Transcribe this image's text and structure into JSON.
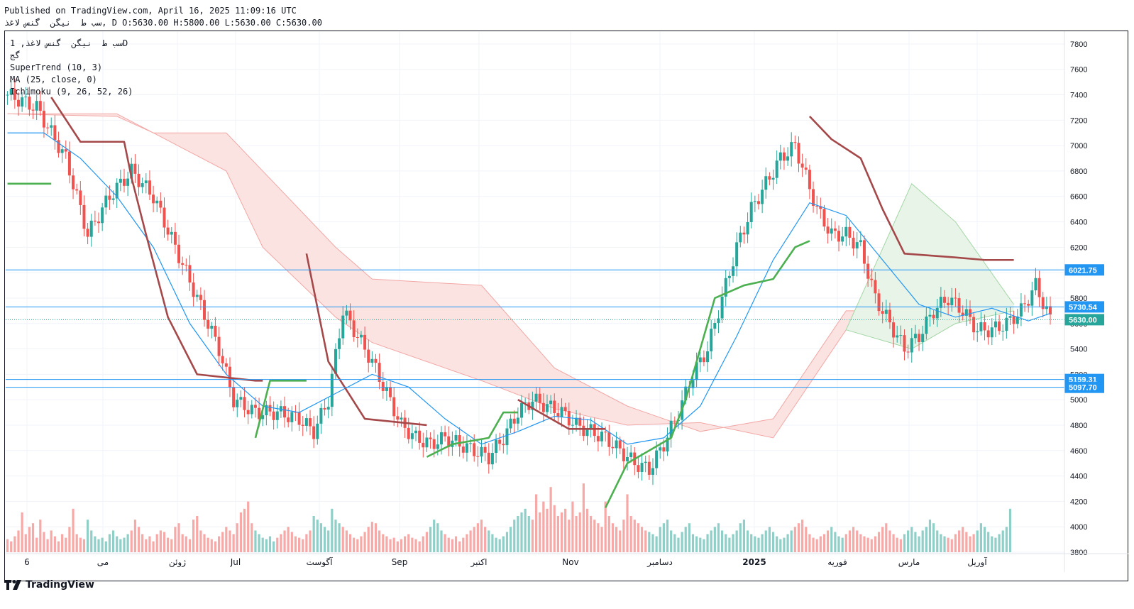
{
  "header": {
    "published": "Published on TradingView.com, April 16, 2025 11:09:16 UTC",
    "ohlc": "سب ط  نیگن  گنس لاغذ, D O:5630.00 H:5800.00 L:5630.00 C:5630.00"
  },
  "legend": {
    "symbol": "سب ط  نیگن  گنس لاغذ, 1D",
    "exchange": "گج",
    "indicators": [
      "SuperTrend (10, 3)",
      "MA (25, close, 0)",
      "Ichimoku (9, 26, 52, 26)"
    ]
  },
  "chart_data": {
    "type": "candlestick",
    "interval": "1D",
    "ylim": [
      3800,
      7900
    ],
    "y_ticks": [
      3800,
      4000,
      4200,
      4400,
      4600,
      4800,
      5000,
      5200,
      5400,
      5600,
      5800,
      6000,
      6200,
      6400,
      6600,
      6800,
      7000,
      7200,
      7400,
      7600,
      7800
    ],
    "x_labels": [
      "6",
      "می",
      "ژوئن",
      "Jul",
      "آگوست",
      "Sep",
      "اکتبر",
      "Nov",
      "دسامبر",
      "2025",
      "فوریه",
      "مارس",
      "آوریل"
    ],
    "price_lines": [
      {
        "value": 6021.75,
        "label": "6021.75",
        "color": "#2196f3"
      },
      {
        "value": 5730.54,
        "label": "5730.54",
        "color": "#2196f3"
      },
      {
        "value": 5630.0,
        "label": "5630.00",
        "color": "#26a69a"
      },
      {
        "value": 5159.31,
        "label": "5159.31",
        "color": "#2196f3"
      },
      {
        "value": 5097.7,
        "label": "5097.70",
        "color": "#2196f3"
      }
    ],
    "close_path": [
      [
        0,
        7400
      ],
      [
        8,
        7300
      ],
      [
        16,
        6900
      ],
      [
        22,
        6300
      ],
      [
        28,
        6600
      ],
      [
        34,
        6800
      ],
      [
        40,
        6600
      ],
      [
        46,
        6200
      ],
      [
        52,
        5800
      ],
      [
        58,
        5400
      ],
      [
        62,
        5000
      ],
      [
        68,
        4900
      ],
      [
        74,
        4900
      ],
      [
        80,
        4850
      ],
      [
        84,
        4750
      ],
      [
        88,
        5000
      ],
      [
        92,
        5700
      ],
      [
        96,
        5500
      ],
      [
        100,
        5300
      ],
      [
        104,
        5050
      ],
      [
        108,
        4800
      ],
      [
        112,
        4700
      ],
      [
        116,
        4650
      ],
      [
        120,
        4700
      ],
      [
        124,
        4650
      ],
      [
        128,
        4600
      ],
      [
        132,
        4550
      ],
      [
        136,
        4700
      ],
      [
        140,
        4900
      ],
      [
        144,
        5000
      ],
      [
        148,
        4950
      ],
      [
        152,
        4900
      ],
      [
        156,
        4800
      ],
      [
        160,
        4750
      ],
      [
        164,
        4700
      ],
      [
        168,
        4600
      ],
      [
        172,
        4500
      ],
      [
        176,
        4450
      ],
      [
        180,
        4650
      ],
      [
        184,
        4900
      ],
      [
        188,
        5200
      ],
      [
        192,
        5400
      ],
      [
        196,
        5800
      ],
      [
        200,
        6200
      ],
      [
        204,
        6500
      ],
      [
        208,
        6700
      ],
      [
        212,
        6900
      ],
      [
        216,
        7000
      ],
      [
        222,
        6500
      ],
      [
        226,
        6300
      ],
      [
        230,
        6300
      ],
      [
        234,
        6200
      ],
      [
        238,
        5800
      ],
      [
        242,
        5600
      ],
      [
        246,
        5400
      ],
      [
        250,
        5500
      ],
      [
        254,
        5700
      ],
      [
        258,
        5800
      ],
      [
        262,
        5700
      ],
      [
        266,
        5550
      ],
      [
        270,
        5550
      ],
      [
        274,
        5600
      ],
      [
        278,
        5700
      ],
      [
        282,
        5900
      ],
      [
        286,
        5630
      ]
    ],
    "ma25": [
      [
        0,
        7100
      ],
      [
        10,
        7100
      ],
      [
        20,
        6900
      ],
      [
        30,
        6600
      ],
      [
        40,
        6200
      ],
      [
        50,
        5600
      ],
      [
        60,
        5200
      ],
      [
        70,
        4950
      ],
      [
        80,
        4900
      ],
      [
        90,
        5050
      ],
      [
        100,
        5200
      ],
      [
        110,
        5100
      ],
      [
        120,
        4850
      ],
      [
        130,
        4650
      ],
      [
        140,
        4750
      ],
      [
        150,
        4870
      ],
      [
        160,
        4840
      ],
      [
        170,
        4650
      ],
      [
        180,
        4700
      ],
      [
        190,
        4950
      ],
      [
        200,
        5500
      ],
      [
        210,
        6100
      ],
      [
        220,
        6550
      ],
      [
        230,
        6450
      ],
      [
        240,
        6100
      ],
      [
        250,
        5750
      ],
      [
        260,
        5650
      ],
      [
        270,
        5720
      ],
      [
        280,
        5620
      ],
      [
        286,
        5680
      ]
    ],
    "supertrend": [
      {
        "color": "#4caf50",
        "points": [
          [
            0,
            6700
          ],
          [
            12,
            6700
          ]
        ]
      },
      {
        "color": "#a5484a",
        "points": [
          [
            12,
            7380
          ],
          [
            20,
            7030
          ],
          [
            32,
            7030
          ],
          [
            34,
            6750
          ],
          [
            38,
            6300
          ],
          [
            44,
            5650
          ],
          [
            52,
            5200
          ],
          [
            68,
            5150
          ],
          [
            70,
            5150
          ]
        ]
      },
      {
        "color": "#4caf50",
        "points": [
          [
            68,
            4700
          ],
          [
            72,
            5150
          ],
          [
            82,
            5150
          ]
        ]
      },
      {
        "color": "#a5484a",
        "points": [
          [
            82,
            6150
          ],
          [
            88,
            5300
          ],
          [
            98,
            4850
          ],
          [
            115,
            4800
          ]
        ]
      },
      {
        "color": "#4caf50",
        "points": [
          [
            115,
            4550
          ],
          [
            122,
            4650
          ],
          [
            132,
            4700
          ],
          [
            136,
            4900
          ],
          [
            140,
            4900
          ]
        ]
      },
      {
        "color": "#a5484a",
        "points": [
          [
            140,
            5000
          ],
          [
            146,
            4900
          ],
          [
            154,
            4770
          ],
          [
            164,
            4770
          ]
        ]
      },
      {
        "color": "#4caf50",
        "points": [
          [
            164,
            4150
          ],
          [
            170,
            4500
          ],
          [
            176,
            4600
          ],
          [
            182,
            4700
          ],
          [
            186,
            5000
          ],
          [
            194,
            5800
          ],
          [
            202,
            5900
          ],
          [
            210,
            5950
          ],
          [
            216,
            6200
          ],
          [
            220,
            6250
          ]
        ]
      },
      {
        "color": "#a5484a",
        "points": [
          [
            220,
            7230
          ],
          [
            226,
            7050
          ],
          [
            234,
            6900
          ],
          [
            240,
            6500
          ],
          [
            246,
            6150
          ],
          [
            260,
            6120
          ],
          [
            268,
            6100
          ],
          [
            276,
            6100
          ]
        ]
      }
    ],
    "cloud": [
      {
        "kind": "bearish",
        "fill": "#fbe3e2",
        "a": [
          [
            0,
            7250
          ],
          [
            30,
            7250
          ],
          [
            40,
            7100
          ],
          [
            60,
            7100
          ],
          [
            70,
            6800
          ],
          [
            90,
            6200
          ],
          [
            100,
            5950
          ],
          [
            130,
            5900
          ],
          [
            150,
            5250
          ],
          [
            170,
            4950
          ],
          [
            190,
            4750
          ],
          [
            210,
            4850
          ],
          [
            230,
            5700
          ],
          [
            276,
            5700
          ]
        ],
        "b": [
          [
            0,
            7250
          ],
          [
            30,
            7230
          ],
          [
            40,
            7100
          ],
          [
            60,
            6800
          ],
          [
            70,
            6200
          ],
          [
            90,
            5650
          ],
          [
            100,
            5450
          ],
          [
            130,
            5150
          ],
          [
            150,
            4930
          ],
          [
            170,
            4800
          ],
          [
            190,
            4820
          ],
          [
            210,
            4700
          ],
          [
            230,
            5550
          ],
          [
            276,
            5700
          ]
        ]
      },
      {
        "kind": "bullish",
        "fill": "#e8f4e8",
        "a": [
          [
            230,
            5550
          ],
          [
            248,
            6700
          ],
          [
            260,
            6400
          ],
          [
            276,
            5750
          ]
        ],
        "b": [
          [
            230,
            5550
          ],
          [
            248,
            5400
          ],
          [
            260,
            5600
          ],
          [
            276,
            5700
          ]
        ]
      }
    ],
    "volume_scale": [
      0,
      1
    ],
    "volume": [
      0.18,
      0.15,
      0.22,
      0.3,
      0.55,
      0.25,
      0.35,
      0.4,
      0.2,
      0.45,
      0.28,
      0.18,
      0.3,
      0.22,
      0.15,
      0.25,
      0.2,
      0.35,
      0.6,
      0.25,
      0.2,
      0.18,
      0.45,
      0.3,
      0.22,
      0.18,
      0.2,
      0.15,
      0.25,
      0.3,
      0.22,
      0.18,
      0.2,
      0.25,
      0.3,
      0.45,
      0.35,
      0.25,
      0.18,
      0.22,
      0.15,
      0.25,
      0.3,
      0.28,
      0.2,
      0.18,
      0.35,
      0.4,
      0.25,
      0.22,
      0.18,
      0.45,
      0.5,
      0.3,
      0.25,
      0.2,
      0.18,
      0.15,
      0.22,
      0.28,
      0.35,
      0.3,
      0.25,
      0.4,
      0.55,
      0.6,
      0.7,
      0.4,
      0.3,
      0.25,
      0.2,
      0.18,
      0.22,
      0.15,
      0.2,
      0.25,
      0.3,
      0.35,
      0.28,
      0.22,
      0.2,
      0.18,
      0.25,
      0.3,
      0.5,
      0.45,
      0.4,
      0.35,
      0.3,
      0.6,
      0.45,
      0.4,
      0.35,
      0.3,
      0.25,
      0.2,
      0.18,
      0.22,
      0.28,
      0.35,
      0.42,
      0.4,
      0.3,
      0.25,
      0.22,
      0.18,
      0.2,
      0.15,
      0.18,
      0.22,
      0.25,
      0.2,
      0.18,
      0.15,
      0.22,
      0.28,
      0.35,
      0.45,
      0.4,
      0.3,
      0.25,
      0.2,
      0.18,
      0.22,
      0.15,
      0.2,
      0.25,
      0.3,
      0.35,
      0.4,
      0.45,
      0.35,
      0.3,
      0.25,
      0.2,
      0.18,
      0.22,
      0.28,
      0.35,
      0.45,
      0.5,
      0.55,
      0.6,
      0.5,
      0.45,
      0.8,
      0.55,
      0.7,
      0.6,
      0.9,
      0.65,
      0.5,
      0.55,
      0.6,
      0.45,
      0.7,
      0.5,
      0.55,
      0.95,
      0.6,
      0.5,
      0.45,
      0.4,
      0.35,
      0.7,
      0.5,
      0.4,
      0.35,
      0.3,
      0.45,
      0.8,
      0.5,
      0.45,
      0.4,
      0.35,
      0.3,
      0.28,
      0.25,
      0.22,
      0.35,
      0.4,
      0.45,
      0.3,
      0.25,
      0.2,
      0.28,
      0.35,
      0.4,
      0.25,
      0.22,
      0.2,
      0.18,
      0.25,
      0.3,
      0.35,
      0.4,
      0.3,
      0.25,
      0.2,
      0.25,
      0.3,
      0.4,
      0.45,
      0.3,
      0.25,
      0.22,
      0.2,
      0.25,
      0.3,
      0.35,
      0.28,
      0.22,
      0.18,
      0.2,
      0.25,
      0.3,
      0.35,
      0.4,
      0.45,
      0.35,
      0.25,
      0.2,
      0.18,
      0.22,
      0.25,
      0.3,
      0.35,
      0.28,
      0.22,
      0.2,
      0.25,
      0.3,
      0.35,
      0.3,
      0.25,
      0.22,
      0.2,
      0.18,
      0.22,
      0.28,
      0.35,
      0.4,
      0.3,
      0.25,
      0.2,
      0.18,
      0.25,
      0.3,
      0.35,
      0.28,
      0.22,
      0.3,
      0.35,
      0.45,
      0.4,
      0.3,
      0.25,
      0.22,
      0.2,
      0.18,
      0.25,
      0.3,
      0.35,
      0.28,
      0.22,
      0.25,
      0.3,
      0.4,
      0.35,
      0.28,
      0.22,
      0.2,
      0.25,
      0.3,
      0.35,
      0.6
    ]
  },
  "colors": {
    "up": "#26a69a",
    "down": "#ef5350",
    "up_volume": "#8fcfc8",
    "down_volume": "#f7a9a7",
    "ma": "#2196f3",
    "cloud_bear": "#fbe3e2",
    "cloud_bull": "#e8f4e8"
  },
  "branding": {
    "logo_text": "TradingView"
  }
}
